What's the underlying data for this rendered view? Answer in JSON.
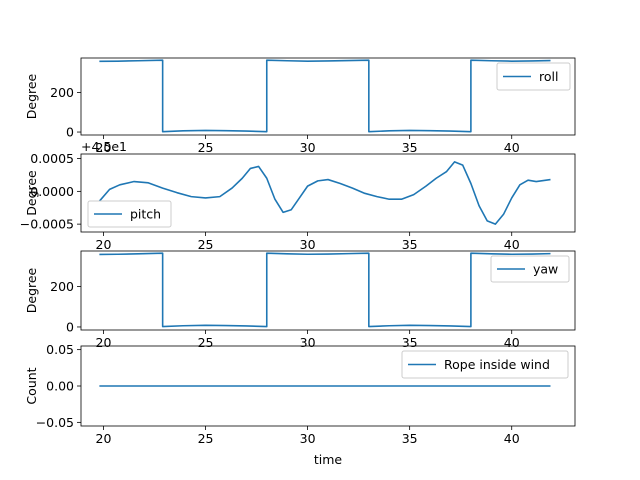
{
  "chart_data": [
    {
      "type": "line",
      "ylabel": "Degree",
      "ylim": [
        -15,
        375
      ],
      "xlim": [
        18.9,
        43.1
      ],
      "yticks": [
        0,
        200
      ],
      "ytick_labels": [
        "0",
        "200"
      ],
      "xticks": [
        20,
        25,
        30,
        35,
        40
      ],
      "xtick_labels": [
        "20",
        "25",
        "30",
        "35",
        "40"
      ],
      "legend_placement": "right",
      "series": [
        {
          "name": "roll",
          "x": [
            19.8,
            20.7,
            21.7,
            22.9,
            22.9,
            23.9,
            25.0,
            26.0,
            27.0,
            28.0,
            28.0,
            29.0,
            30.0,
            31.0,
            32.0,
            33.0,
            33.0,
            34.0,
            35.0,
            36.0,
            37.0,
            38.0,
            38.0,
            39.0,
            40.0,
            41.0,
            41.9
          ],
          "values": [
            358,
            359,
            361,
            364,
            2,
            6,
            8,
            7,
            5,
            2,
            364,
            361,
            359,
            360,
            362,
            364,
            2,
            6,
            8,
            7,
            5,
            2,
            364,
            361,
            359,
            360,
            362
          ]
        }
      ]
    },
    {
      "type": "line",
      "ylabel": "Degree",
      "offset_text": "+4.5e1",
      "ylim": [
        -0.00062,
        0.00057
      ],
      "xlim": [
        18.9,
        43.1
      ],
      "yticks": [
        0.0005,
        0.0,
        -0.0005
      ],
      "ytick_labels": [
        "0.0005",
        "0.0000",
        "−0.0005"
      ],
      "xticks": [
        20,
        25,
        30,
        35,
        40
      ],
      "xtick_labels": [
        "20",
        "25",
        "30",
        "35",
        "40"
      ],
      "legend_placement": "lower left",
      "series": [
        {
          "name": "pitch",
          "x": [
            19.8,
            20.3,
            20.8,
            21.5,
            22.2,
            22.9,
            23.6,
            24.3,
            25.0,
            25.7,
            26.3,
            26.8,
            27.2,
            27.6,
            28.0,
            28.4,
            28.8,
            29.2,
            29.6,
            30.0,
            30.5,
            31.0,
            31.6,
            32.2,
            32.8,
            33.4,
            34.0,
            34.6,
            35.2,
            35.8,
            36.3,
            36.8,
            37.2,
            37.6,
            38.0,
            38.4,
            38.8,
            39.2,
            39.6,
            40.0,
            40.4,
            40.8,
            41.2,
            41.9
          ],
          "values": [
            -0.00015,
            3e-05,
            0.0001,
            0.00015,
            0.00013,
            5e-05,
            -2e-05,
            -8e-05,
            -0.0001,
            -8e-05,
            5e-05,
            0.0002,
            0.00035,
            0.00038,
            0.0002,
            -0.00012,
            -0.00032,
            -0.00028,
            -0.0001,
            8e-05,
            0.00016,
            0.00018,
            0.00012,
            5e-05,
            -3e-05,
            -8e-05,
            -0.00012,
            -0.00012,
            -5e-05,
            8e-05,
            0.0002,
            0.0003,
            0.00045,
            0.0004,
            0.00012,
            -0.00022,
            -0.00045,
            -0.0005,
            -0.00035,
            -0.0001,
            0.0001,
            0.00017,
            0.00015,
            0.00018
          ]
        }
      ]
    },
    {
      "type": "line",
      "ylabel": "Degree",
      "ylim": [
        -15,
        375
      ],
      "xlim": [
        18.9,
        43.1
      ],
      "yticks": [
        0,
        200
      ],
      "ytick_labels": [
        "0",
        "200"
      ],
      "xticks": [
        20,
        25,
        30,
        35,
        40
      ],
      "xtick_labels": [
        "20",
        "25",
        "30",
        "35",
        "40"
      ],
      "legend_placement": "upper right",
      "series": [
        {
          "name": "yaw",
          "x": [
            19.8,
            20.7,
            21.7,
            22.9,
            22.9,
            23.9,
            25.0,
            26.0,
            27.0,
            28.0,
            28.0,
            29.0,
            30.0,
            31.0,
            32.0,
            33.0,
            33.0,
            34.0,
            35.0,
            36.0,
            37.0,
            38.0,
            38.0,
            39.0,
            40.0,
            41.0,
            41.9
          ],
          "values": [
            358,
            359,
            361,
            364,
            2,
            6,
            8,
            7,
            5,
            2,
            364,
            361,
            359,
            360,
            362,
            364,
            2,
            6,
            8,
            7,
            5,
            2,
            364,
            361,
            359,
            360,
            362
          ]
        }
      ]
    },
    {
      "type": "line",
      "ylabel": "Count",
      "xlabel": "time",
      "ylim": [
        -0.055,
        0.055
      ],
      "xlim": [
        18.9,
        43.1
      ],
      "yticks": [
        0.05,
        0.0,
        -0.05
      ],
      "ytick_labels": [
        "0.05",
        "0.00",
        "−0.05"
      ],
      "xticks": [
        20,
        25,
        30,
        35,
        40
      ],
      "xtick_labels": [
        "20",
        "25",
        "30",
        "35",
        "40"
      ],
      "legend_placement": "upper right",
      "series": [
        {
          "name": "Rope inside wind",
          "x": [
            19.8,
            41.9
          ],
          "values": [
            0,
            0
          ]
        }
      ]
    }
  ],
  "colors": {
    "series": "#1f77b4"
  }
}
